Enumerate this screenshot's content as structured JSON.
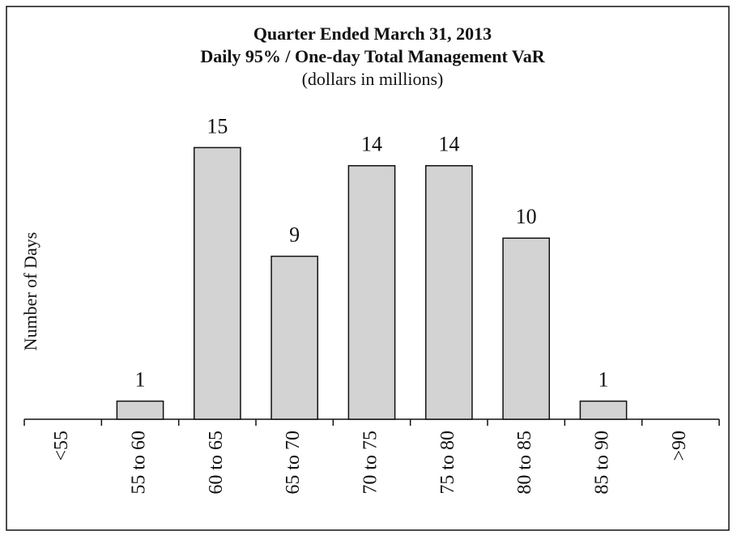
{
  "chart_data": {
    "type": "bar",
    "title": "Quarter Ended March 31, 2013",
    "subtitle": "Daily 95% / One-day Total Management VaR",
    "note": "(dollars in millions)",
    "y_label": "Number of Days",
    "categories": [
      "<55",
      "55 to 60",
      "60 to 65",
      "65 to 70",
      "70 to 75",
      "75 to 80",
      "80 to 85",
      "85 to 90",
      ">90"
    ],
    "values": [
      0,
      1,
      15,
      9,
      14,
      14,
      10,
      1,
      0
    ],
    "color": "#d3d3d3",
    "ylim": [
      0,
      16
    ]
  }
}
